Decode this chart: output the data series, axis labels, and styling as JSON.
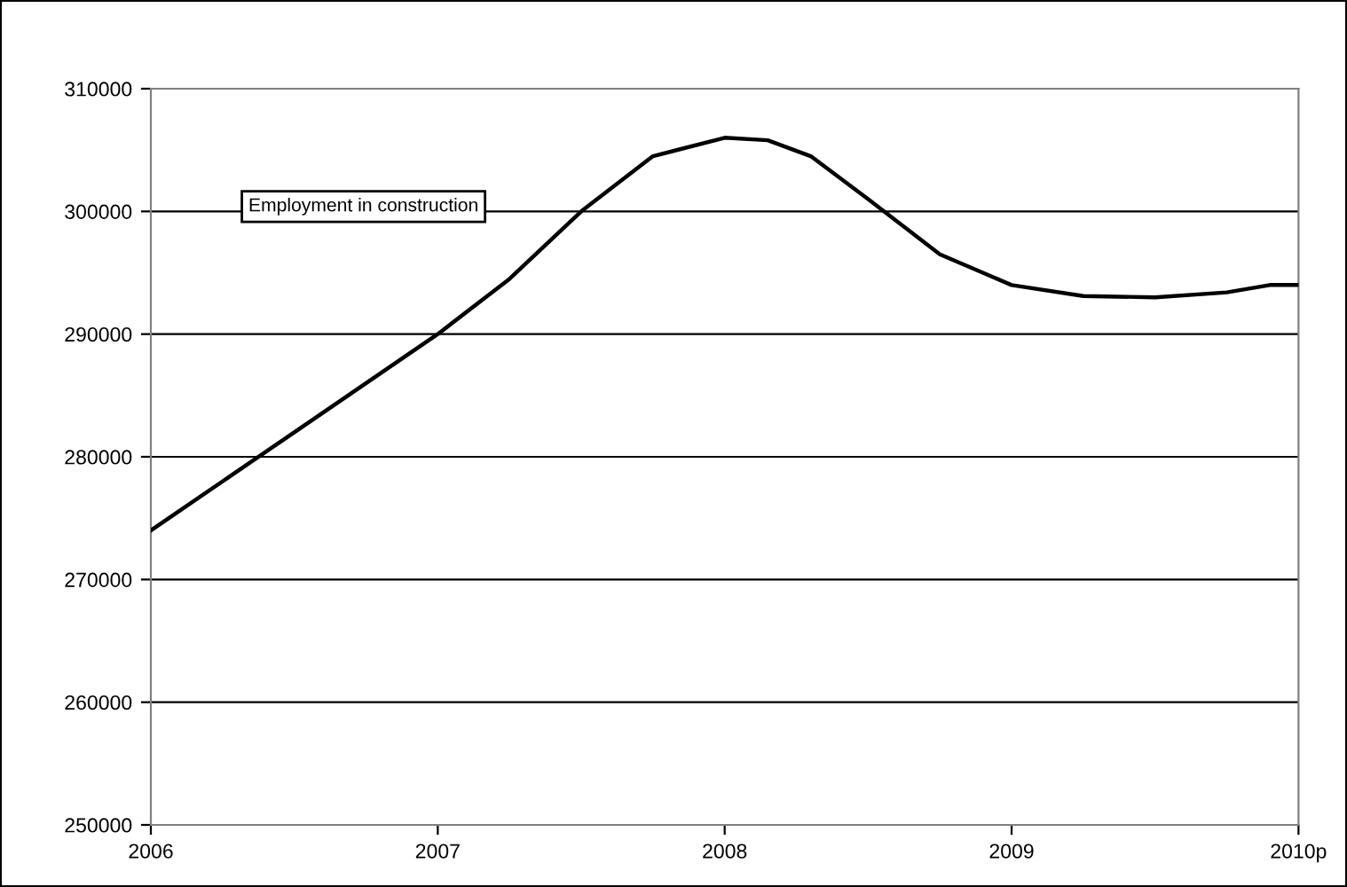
{
  "chart_data": {
    "type": "line",
    "x": [
      2006.0,
      2006.5,
      2007.0,
      2007.25,
      2007.5,
      2007.75,
      2008.0,
      2008.15,
      2008.3,
      2008.5,
      2008.75,
      2008.9,
      2009.0,
      2009.25,
      2009.5,
      2009.75,
      2009.9,
      2010.0
    ],
    "series": [
      {
        "name": "Employment in construction",
        "color": "#000000",
        "values": [
          274000,
          282000,
          290000,
          294500,
          300000,
          304500,
          306000,
          305800,
          304500,
          301000,
          296500,
          295000,
          294000,
          293100,
          293000,
          293400,
          294000,
          294000
        ]
      }
    ],
    "xlim": [
      2006,
      2010
    ],
    "xticks": [
      2006,
      2007,
      2008,
      2009,
      {
        "value": 2010,
        "label": "2010p"
      }
    ],
    "ylim": [
      250000,
      310000
    ],
    "yticks": [
      250000,
      260000,
      270000,
      280000,
      290000,
      300000,
      310000
    ],
    "grid": "y",
    "marker": "none",
    "line_style": "solid"
  }
}
